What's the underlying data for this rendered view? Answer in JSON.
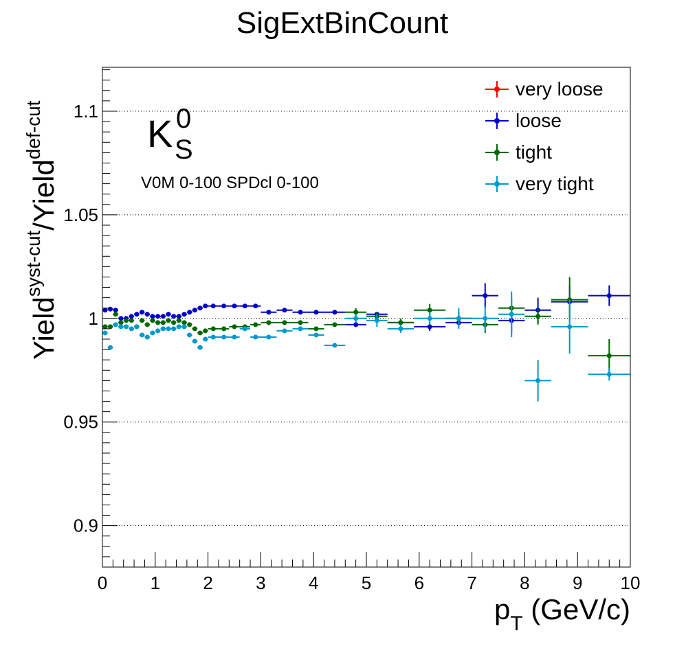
{
  "chart_data": {
    "type": "scatter",
    "title": "SigExtBinCount",
    "xlabel": {
      "main": "p",
      "sub": "T",
      "rest": " (GeV/c)"
    },
    "ylabel": {
      "num": "Yield",
      "num_sup": "syst-cut",
      "slash": "/",
      "den": "Yield",
      "den_sup": "def-cut"
    },
    "xlim": [
      0,
      10
    ],
    "ylim": [
      0.88,
      1.1212
    ],
    "xticks": [
      0,
      1,
      2,
      3,
      4,
      5,
      6,
      7,
      8,
      9,
      10
    ],
    "xtick_labels": [
      "0",
      "1",
      "2",
      "3",
      "4",
      "5",
      "6",
      "7",
      "8",
      "9",
      "10"
    ],
    "yticks": [
      0.9,
      0.95,
      1.0,
      1.05,
      1.1
    ],
    "ytick_labels": [
      "0.9",
      "0.95",
      "1",
      "1.05",
      "1.1"
    ],
    "grid": "horizontal dotted at major y ticks",
    "annotations": {
      "particle": {
        "base": "K",
        "sup": "0",
        "sub": "S"
      },
      "selection": "V0M 0-100 SPDcl 0-100"
    },
    "legend_position": "top-right",
    "series": [
      {
        "name": "very loose",
        "color": "#ff0000",
        "points": []
      },
      {
        "name": "loose",
        "color": "#0000cc",
        "points": [
          [
            0.05,
            1.004,
            0.05,
            0.001
          ],
          [
            0.15,
            1.0045,
            0.05,
            0.001
          ],
          [
            0.25,
            1.004,
            0.05,
            0.001
          ],
          [
            0.35,
            1.0,
            0.05,
            0.001
          ],
          [
            0.45,
            1.0,
            0.05,
            0.001
          ],
          [
            0.55,
            1.001,
            0.05,
            0.001
          ],
          [
            0.65,
            1.002,
            0.05,
            0.001
          ],
          [
            0.75,
            1.003,
            0.05,
            0.001
          ],
          [
            0.85,
            1.002,
            0.05,
            0.001
          ],
          [
            0.95,
            1.001,
            0.05,
            0.001
          ],
          [
            1.05,
            1.001,
            0.05,
            0.001
          ],
          [
            1.15,
            1.001,
            0.05,
            0.001
          ],
          [
            1.25,
            1.002,
            0.05,
            0.001
          ],
          [
            1.35,
            1.001,
            0.05,
            0.001
          ],
          [
            1.45,
            1.001,
            0.05,
            0.001
          ],
          [
            1.55,
            1.002,
            0.05,
            0.001
          ],
          [
            1.65,
            1.003,
            0.05,
            0.001
          ],
          [
            1.75,
            1.004,
            0.05,
            0.001
          ],
          [
            1.85,
            1.005,
            0.05,
            0.001
          ],
          [
            1.95,
            1.006,
            0.05,
            0.001
          ],
          [
            2.1,
            1.006,
            0.1,
            0.001
          ],
          [
            2.3,
            1.006,
            0.1,
            0.001
          ],
          [
            2.5,
            1.006,
            0.1,
            0.001
          ],
          [
            2.7,
            1.006,
            0.1,
            0.001
          ],
          [
            2.9,
            1.006,
            0.1,
            0.001
          ],
          [
            3.15,
            1.003,
            0.15,
            0.001
          ],
          [
            3.45,
            1.004,
            0.15,
            0.001
          ],
          [
            3.75,
            1.003,
            0.15,
            0.001
          ],
          [
            4.05,
            1.003,
            0.15,
            0.001
          ],
          [
            4.4,
            1.003,
            0.2,
            0.001
          ],
          [
            4.8,
            0.997,
            0.2,
            0.001
          ],
          [
            5.2,
            1.002,
            0.2,
            0.001
          ],
          [
            5.65,
            0.998,
            0.25,
            0.001
          ],
          [
            6.2,
            0.996,
            0.3,
            0.002
          ],
          [
            6.75,
            0.998,
            0.25,
            0.002
          ],
          [
            7.25,
            1.011,
            0.25,
            0.006
          ],
          [
            7.75,
            0.999,
            0.25,
            0.006
          ],
          [
            8.25,
            1.004,
            0.25,
            0.006
          ],
          [
            8.85,
            1.008,
            0.35,
            0.008
          ],
          [
            9.6,
            1.011,
            0.4,
            0.005
          ]
        ]
      },
      {
        "name": "tight",
        "color": "#006600",
        "points": [
          [
            0.05,
            0.996,
            0.05,
            0.001
          ],
          [
            0.15,
            0.996,
            0.05,
            0.001
          ],
          [
            0.25,
            1.002,
            0.05,
            0.001
          ],
          [
            0.35,
            0.998,
            0.05,
            0.001
          ],
          [
            0.45,
            0.999,
            0.05,
            0.001
          ],
          [
            0.55,
            0.999,
            0.05,
            0.001
          ],
          [
            0.65,
            0.996,
            0.05,
            0.001
          ],
          [
            0.75,
            0.999,
            0.05,
            0.001
          ],
          [
            0.85,
            0.997,
            0.05,
            0.001
          ],
          [
            0.95,
            0.999,
            0.05,
            0.001
          ],
          [
            1.05,
            0.998,
            0.05,
            0.001
          ],
          [
            1.15,
            0.998,
            0.05,
            0.001
          ],
          [
            1.25,
            0.999,
            0.05,
            0.001
          ],
          [
            1.35,
            0.998,
            0.05,
            0.001
          ],
          [
            1.45,
            0.999,
            0.05,
            0.001
          ],
          [
            1.55,
            0.998,
            0.05,
            0.001
          ],
          [
            1.65,
            0.997,
            0.05,
            0.001
          ],
          [
            1.75,
            0.995,
            0.05,
            0.001
          ],
          [
            1.85,
            0.993,
            0.05,
            0.001
          ],
          [
            1.95,
            0.994,
            0.05,
            0.001
          ],
          [
            2.1,
            0.995,
            0.1,
            0.001
          ],
          [
            2.3,
            0.995,
            0.1,
            0.001
          ],
          [
            2.5,
            0.996,
            0.1,
            0.001
          ],
          [
            2.7,
            0.996,
            0.1,
            0.001
          ],
          [
            2.9,
            0.997,
            0.1,
            0.001
          ],
          [
            3.15,
            0.998,
            0.15,
            0.001
          ],
          [
            3.45,
            0.998,
            0.15,
            0.001
          ],
          [
            3.75,
            0.998,
            0.15,
            0.001
          ],
          [
            4.05,
            0.995,
            0.15,
            0.001
          ],
          [
            4.4,
            0.997,
            0.2,
            0.001
          ],
          [
            4.8,
            1.003,
            0.2,
            0.002
          ],
          [
            5.2,
            1.001,
            0.2,
            0.002
          ],
          [
            5.65,
            0.998,
            0.25,
            0.002
          ],
          [
            6.2,
            1.004,
            0.3,
            0.003
          ],
          [
            6.75,
            1.0,
            0.25,
            0.003
          ],
          [
            7.25,
            0.997,
            0.25,
            0.004
          ],
          [
            7.75,
            1.005,
            0.25,
            0.005
          ],
          [
            8.25,
            1.001,
            0.25,
            0.004
          ],
          [
            8.85,
            1.009,
            0.35,
            0.011
          ],
          [
            9.6,
            0.982,
            0.4,
            0.008
          ]
        ]
      },
      {
        "name": "very tight",
        "color": "#0099cc",
        "points": [
          [
            0.05,
            0.993,
            0.05,
            0.001
          ],
          [
            0.15,
            0.986,
            0.05,
            0.001
          ],
          [
            0.25,
            0.997,
            0.05,
            0.001
          ],
          [
            0.35,
            0.996,
            0.05,
            0.001
          ],
          [
            0.45,
            0.996,
            0.05,
            0.001
          ],
          [
            0.55,
            0.995,
            0.05,
            0.001
          ],
          [
            0.65,
            0.996,
            0.05,
            0.001
          ],
          [
            0.75,
            0.992,
            0.05,
            0.001
          ],
          [
            0.85,
            0.991,
            0.05,
            0.001
          ],
          [
            0.95,
            0.993,
            0.05,
            0.001
          ],
          [
            1.05,
            0.994,
            0.05,
            0.001
          ],
          [
            1.15,
            0.995,
            0.05,
            0.001
          ],
          [
            1.25,
            0.995,
            0.05,
            0.001
          ],
          [
            1.35,
            0.995,
            0.05,
            0.001
          ],
          [
            1.45,
            0.996,
            0.05,
            0.001
          ],
          [
            1.55,
            0.996,
            0.05,
            0.001
          ],
          [
            1.65,
            0.992,
            0.05,
            0.001
          ],
          [
            1.75,
            0.989,
            0.05,
            0.001
          ],
          [
            1.85,
            0.986,
            0.05,
            0.001
          ],
          [
            1.95,
            0.99,
            0.05,
            0.001
          ],
          [
            2.1,
            0.991,
            0.1,
            0.001
          ],
          [
            2.3,
            0.991,
            0.1,
            0.001
          ],
          [
            2.5,
            0.991,
            0.1,
            0.001
          ],
          [
            2.7,
            0.995,
            0.1,
            0.001
          ],
          [
            2.9,
            0.991,
            0.1,
            0.001
          ],
          [
            3.15,
            0.991,
            0.15,
            0.001
          ],
          [
            3.45,
            0.994,
            0.15,
            0.001
          ],
          [
            3.75,
            0.995,
            0.15,
            0.001
          ],
          [
            4.05,
            0.992,
            0.15,
            0.001
          ],
          [
            4.4,
            0.987,
            0.2,
            0.001
          ],
          [
            4.8,
            1.0,
            0.2,
            0.002
          ],
          [
            5.2,
            0.999,
            0.2,
            0.003
          ],
          [
            5.65,
            0.995,
            0.25,
            0.002
          ],
          [
            6.2,
            1.0,
            0.3,
            0.003
          ],
          [
            6.75,
            1.0,
            0.25,
            0.005
          ],
          [
            7.25,
            1.0,
            0.25,
            0.006
          ],
          [
            7.75,
            1.002,
            0.25,
            0.011
          ],
          [
            8.25,
            0.97,
            0.25,
            0.01
          ],
          [
            8.85,
            0.996,
            0.35,
            0.013
          ],
          [
            9.6,
            0.973,
            0.4,
            0.003
          ]
        ]
      }
    ]
  }
}
